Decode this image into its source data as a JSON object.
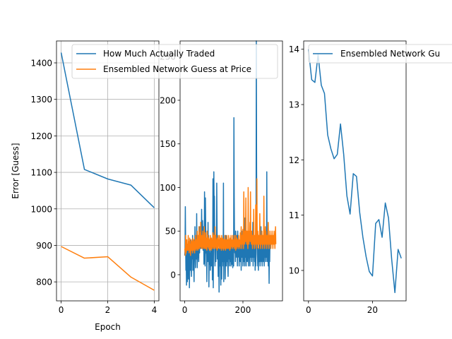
{
  "colors": {
    "series_a": "#1f77b4",
    "series_b": "#ff7f0e",
    "grid": "#b0b0b0",
    "axis": "#000000"
  },
  "chart_data": [
    {
      "type": "line",
      "xlabel": "Epoch",
      "ylabel": "Error [Guess]",
      "xlim": [
        -0.2,
        4.2
      ],
      "ylim": [
        748,
        1460
      ],
      "xticks": [
        0,
        2,
        4
      ],
      "yticks": [
        800,
        900,
        1000,
        1100,
        1200,
        1300,
        1400
      ],
      "grid": true,
      "legend": "upper right",
      "x": [
        0,
        1,
        2,
        3,
        4
      ],
      "series": [
        {
          "name": "How Much Actually Traded",
          "color": "#1f77b4",
          "values": [
            1428,
            1108,
            1082,
            1065,
            1003
          ]
        },
        {
          "name": "Ensembled Network Guess at Price",
          "color": "#ff7f0e",
          "values": [
            897,
            865,
            869,
            813,
            777
          ]
        }
      ]
    },
    {
      "type": "line",
      "xlabel": "",
      "ylabel": "",
      "xlim": [
        -16,
        336
      ],
      "ylim": [
        -30,
        268
      ],
      "xticks": [
        0,
        200
      ],
      "yticks": [
        0,
        50,
        100,
        150,
        200,
        250
      ],
      "grid": false,
      "series": [
        {
          "name": "",
          "color": "#1f77b4",
          "values": [
            22,
            28,
            78,
            35,
            5,
            22,
            -12,
            18,
            30,
            -8,
            25,
            5,
            32,
            -5,
            18,
            28,
            -15,
            15,
            20,
            40,
            5,
            30,
            10,
            -2,
            35,
            18,
            25,
            45,
            5,
            22,
            30,
            12,
            -8,
            28,
            18,
            55,
            22,
            8,
            35,
            28,
            18,
            70,
            25,
            8,
            35,
            45,
            30,
            20,
            15,
            35,
            48,
            25,
            55,
            40,
            30,
            60,
            45,
            40,
            75,
            48,
            30,
            62,
            50,
            28,
            35,
            55,
            12,
            25,
            95,
            50,
            10,
            88,
            55,
            25,
            30,
            20,
            -8,
            45,
            30,
            15,
            60,
            25,
            45,
            -14,
            22,
            40,
            12,
            25,
            5,
            20,
            30,
            10,
            35,
            22,
            35,
            -6,
            25,
            110,
            -15,
            40,
            118,
            75,
            90,
            30,
            10,
            40,
            22,
            15,
            45,
            30,
            105,
            55,
            18,
            40,
            25,
            -2,
            30,
            20,
            -20,
            15,
            35,
            10,
            28,
            40,
            -12,
            30,
            20,
            -5,
            25,
            35,
            15,
            40,
            10,
            105,
            -8,
            30,
            20,
            15,
            35,
            -5,
            20,
            45,
            30,
            10,
            25,
            40,
            15,
            40,
            10,
            -2,
            35,
            18,
            25,
            40,
            10,
            30,
            15,
            20,
            35,
            10,
            25,
            40,
            12,
            30,
            20,
            8,
            32,
            18,
            10,
            180,
            90,
            40,
            25,
            30,
            15,
            50,
            40,
            35,
            20,
            45,
            30,
            10,
            50,
            35,
            25,
            20,
            40,
            10,
            35,
            25,
            20,
            15,
            45,
            30,
            5,
            40,
            25,
            20,
            50,
            30,
            10,
            20,
            45,
            35,
            15,
            30,
            10,
            65,
            40,
            20,
            30,
            10,
            45,
            25,
            35,
            15,
            40,
            20,
            30,
            10,
            35,
            25,
            40,
            20,
            10,
            30,
            50,
            20,
            35,
            25,
            15,
            40,
            20,
            30,
            60,
            10,
            45,
            25,
            20,
            35,
            15,
            40,
            5,
            30,
            10,
            25,
            268,
            120,
            60,
            40,
            20,
            10,
            30,
            5,
            20,
            45,
            15,
            25,
            40,
            10,
            30,
            20,
            55,
            15,
            35,
            25,
            10,
            45,
            20,
            30,
            15,
            40,
            25,
            10,
            35,
            20,
            30,
            45,
            15,
            25,
            50,
            20,
            118,
            15,
            40,
            25,
            30,
            10,
            45,
            20,
            -10,
            30,
            15,
            40
          ]
        },
        {
          "name": "",
          "color": "#ff7f0e",
          "values": [
            28,
            30,
            22,
            45,
            32,
            25,
            30,
            40,
            28,
            35,
            30,
            28,
            45,
            30,
            38,
            25,
            30,
            42,
            28,
            35,
            22,
            30,
            40,
            32,
            28,
            38,
            30,
            25,
            42,
            30,
            35,
            28,
            40,
            30,
            25,
            38,
            32,
            45,
            30,
            28,
            40,
            35,
            30,
            50,
            32,
            28,
            45,
            38,
            30,
            55,
            35,
            30,
            48,
            40,
            32,
            60,
            38,
            30,
            45,
            35,
            40,
            30,
            50,
            38,
            32,
            45,
            30,
            55,
            40,
            35,
            30,
            48,
            38,
            30,
            42,
            35,
            28,
            50,
            40,
            32,
            45,
            38,
            30,
            42,
            35,
            28,
            40,
            32,
            45,
            30,
            38,
            28,
            42,
            35,
            30,
            40,
            32,
            48,
            38,
            30,
            45,
            35,
            40,
            30,
            55,
            38,
            32,
            45,
            30,
            40,
            35,
            28,
            42,
            38,
            30,
            45,
            35,
            40,
            32,
            30,
            45,
            38,
            30,
            42,
            35,
            40,
            28,
            45,
            32,
            38,
            30,
            42,
            35,
            28,
            40,
            32,
            38,
            30,
            45,
            35,
            28,
            40,
            32,
            38,
            30,
            45,
            35,
            40,
            30,
            38,
            32,
            45,
            30,
            40,
            35,
            28,
            42,
            38,
            30,
            45,
            35,
            40,
            32,
            38,
            30,
            45,
            35,
            40,
            32,
            38,
            30,
            45,
            35,
            40,
            32,
            28,
            45,
            38,
            30,
            42,
            35,
            40,
            32,
            38,
            30,
            45,
            35,
            40,
            32,
            38,
            30,
            48,
            35,
            40,
            55,
            38,
            30,
            45,
            35,
            40,
            52,
            38,
            30,
            95,
            45,
            40,
            35,
            50,
            42,
            38,
            88,
            45,
            40,
            35,
            50,
            42,
            38,
            30,
            100,
            45,
            40,
            35,
            50,
            42,
            60,
            38,
            95,
            45,
            40,
            35,
            50,
            42,
            38,
            30,
            45,
            40,
            35,
            75,
            42,
            38,
            30,
            45,
            40,
            35,
            80,
            42,
            38,
            30,
            110,
            40,
            35,
            50,
            42,
            38,
            30,
            45,
            40,
            35,
            70,
            42,
            38,
            30,
            45,
            40,
            35,
            50,
            42,
            38,
            30,
            45,
            40,
            35,
            90,
            42,
            38,
            30,
            45,
            55,
            35,
            50,
            42,
            38,
            30,
            45,
            40,
            35,
            50,
            60,
            38,
            30,
            45,
            40,
            35,
            50,
            42,
            38,
            30,
            45,
            40,
            35,
            50,
            42,
            38,
            30,
            45,
            40,
            35,
            50,
            42,
            38,
            30,
            45,
            55,
            35
          ]
        }
      ]
    },
    {
      "type": "line",
      "xlabel": "",
      "ylabel": "",
      "xlim": [
        -1.5,
        30.5
      ],
      "ylim": [
        9.45,
        14.15
      ],
      "xticks": [
        0,
        20
      ],
      "yticks": [
        10,
        11,
        12,
        13,
        14
      ],
      "grid": false,
      "legend": "upper right",
      "x": [
        0,
        1,
        2,
        3,
        4,
        5,
        6,
        7,
        8,
        9,
        10,
        11,
        12,
        13,
        14,
        15,
        16,
        17,
        18,
        19,
        20,
        21,
        22,
        23,
        24,
        25,
        26,
        27,
        28,
        29
      ],
      "series": [
        {
          "name": "Ensembled Network Gu",
          "color": "#1f77b4",
          "values": [
            14.0,
            13.45,
            13.4,
            13.9,
            13.35,
            13.2,
            12.45,
            12.2,
            12.02,
            12.1,
            12.65,
            12.1,
            11.35,
            11.02,
            11.75,
            11.7,
            11.05,
            10.6,
            10.25,
            9.98,
            9.9,
            10.85,
            10.92,
            10.6,
            11.22,
            10.95,
            10.2,
            9.6,
            10.38,
            10.22
          ]
        }
      ]
    }
  ]
}
